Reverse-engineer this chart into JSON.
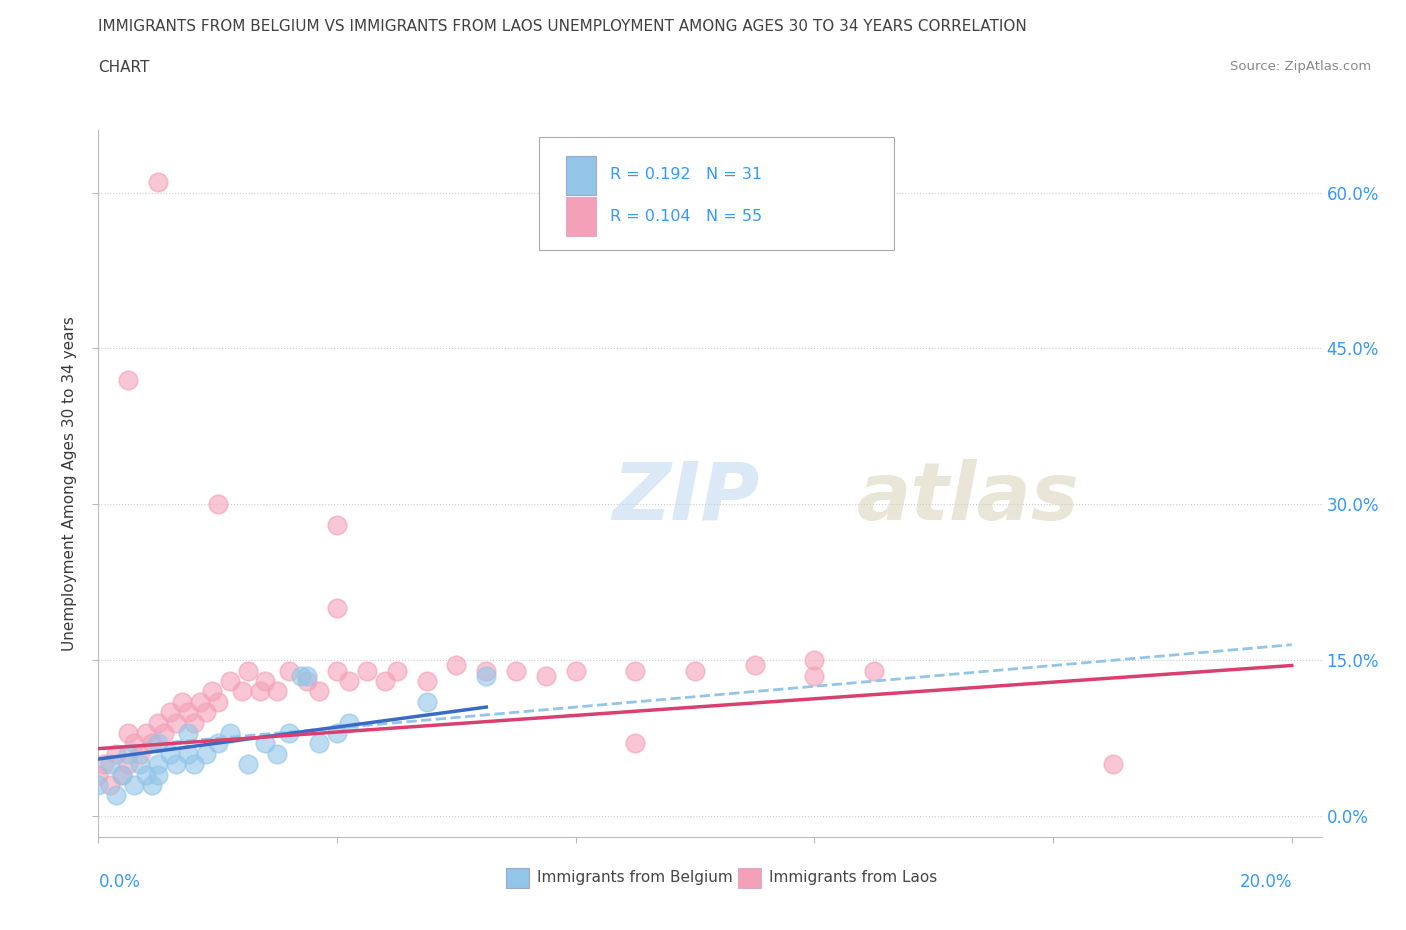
{
  "title_line1": "IMMIGRANTS FROM BELGIUM VS IMMIGRANTS FROM LAOS UNEMPLOYMENT AMONG AGES 30 TO 34 YEARS CORRELATION",
  "title_line2": "CHART",
  "source_text": "Source: ZipAtlas.com",
  "ylabel": "Unemployment Among Ages 30 to 34 years",
  "ytick_labels": [
    "60.0%",
    "45.0%",
    "30.0%",
    "15.0%",
    "0.0%"
  ],
  "ytick_values": [
    0.6,
    0.45,
    0.3,
    0.15,
    0.0
  ],
  "xlim": [
    0.0,
    0.205
  ],
  "ylim": [
    -0.02,
    0.66
  ],
  "watermark_zip": "ZIP",
  "watermark_atlas": "atlas",
  "legend_r1": "R = 0.192   N = 31",
  "legend_r2": "R = 0.104   N = 55",
  "legend_label1": "Immigrants from Belgium",
  "legend_label2": "Immigrants from Laos",
  "color_belgium": "#92c5e8",
  "color_laos": "#f4a0b8",
  "color_title": "#404040",
  "color_axis_label": "#3399ff",
  "color_trend_belgium": "#3a6bc4",
  "color_trend_laos": "#d94070",
  "color_trend_dashed": "#92c5e8",
  "color_gridline": "#cccccc",
  "belgium_x": [
    0.0,
    0.002,
    0.003,
    0.004,
    0.005,
    0.006,
    0.007,
    0.008,
    0.009,
    0.01,
    0.01,
    0.01,
    0.012,
    0.013,
    0.015,
    0.015,
    0.016,
    0.018,
    0.02,
    0.022,
    0.025,
    0.028,
    0.03,
    0.032,
    0.034,
    0.035,
    0.037,
    0.04,
    0.042,
    0.055,
    0.065
  ],
  "belgium_y": [
    0.03,
    0.05,
    0.02,
    0.04,
    0.06,
    0.03,
    0.05,
    0.04,
    0.03,
    0.07,
    0.05,
    0.04,
    0.06,
    0.05,
    0.08,
    0.06,
    0.05,
    0.06,
    0.07,
    0.08,
    0.05,
    0.07,
    0.06,
    0.08,
    0.135,
    0.135,
    0.07,
    0.08,
    0.09,
    0.11,
    0.135
  ],
  "laos_x": [
    0.0,
    0.001,
    0.002,
    0.003,
    0.004,
    0.005,
    0.005,
    0.006,
    0.007,
    0.008,
    0.009,
    0.01,
    0.011,
    0.012,
    0.013,
    0.014,
    0.015,
    0.016,
    0.017,
    0.018,
    0.019,
    0.02,
    0.022,
    0.024,
    0.025,
    0.027,
    0.028,
    0.03,
    0.032,
    0.035,
    0.037,
    0.04,
    0.042,
    0.045,
    0.048,
    0.05,
    0.055,
    0.06,
    0.065,
    0.07,
    0.075,
    0.08,
    0.09,
    0.1,
    0.11,
    0.12,
    0.13,
    0.04,
    0.09,
    0.005,
    0.01,
    0.02,
    0.04,
    0.12,
    0.17
  ],
  "laos_y": [
    0.04,
    0.05,
    0.03,
    0.06,
    0.04,
    0.08,
    0.05,
    0.07,
    0.06,
    0.08,
    0.07,
    0.09,
    0.08,
    0.1,
    0.09,
    0.11,
    0.1,
    0.09,
    0.11,
    0.1,
    0.12,
    0.11,
    0.13,
    0.12,
    0.14,
    0.12,
    0.13,
    0.12,
    0.14,
    0.13,
    0.12,
    0.14,
    0.13,
    0.14,
    0.13,
    0.14,
    0.13,
    0.145,
    0.14,
    0.14,
    0.135,
    0.14,
    0.14,
    0.14,
    0.145,
    0.15,
    0.14,
    0.28,
    0.07,
    0.42,
    0.61,
    0.3,
    0.2,
    0.135,
    0.05
  ],
  "belgium_trend_x": [
    0.0,
    0.065
  ],
  "belgium_trend_y": [
    0.055,
    0.105
  ],
  "laos_trend_x": [
    0.0,
    0.2
  ],
  "laos_trend_y": [
    0.065,
    0.145
  ],
  "dashed_trend_x": [
    0.0,
    0.2
  ],
  "dashed_trend_y": [
    0.065,
    0.165
  ]
}
